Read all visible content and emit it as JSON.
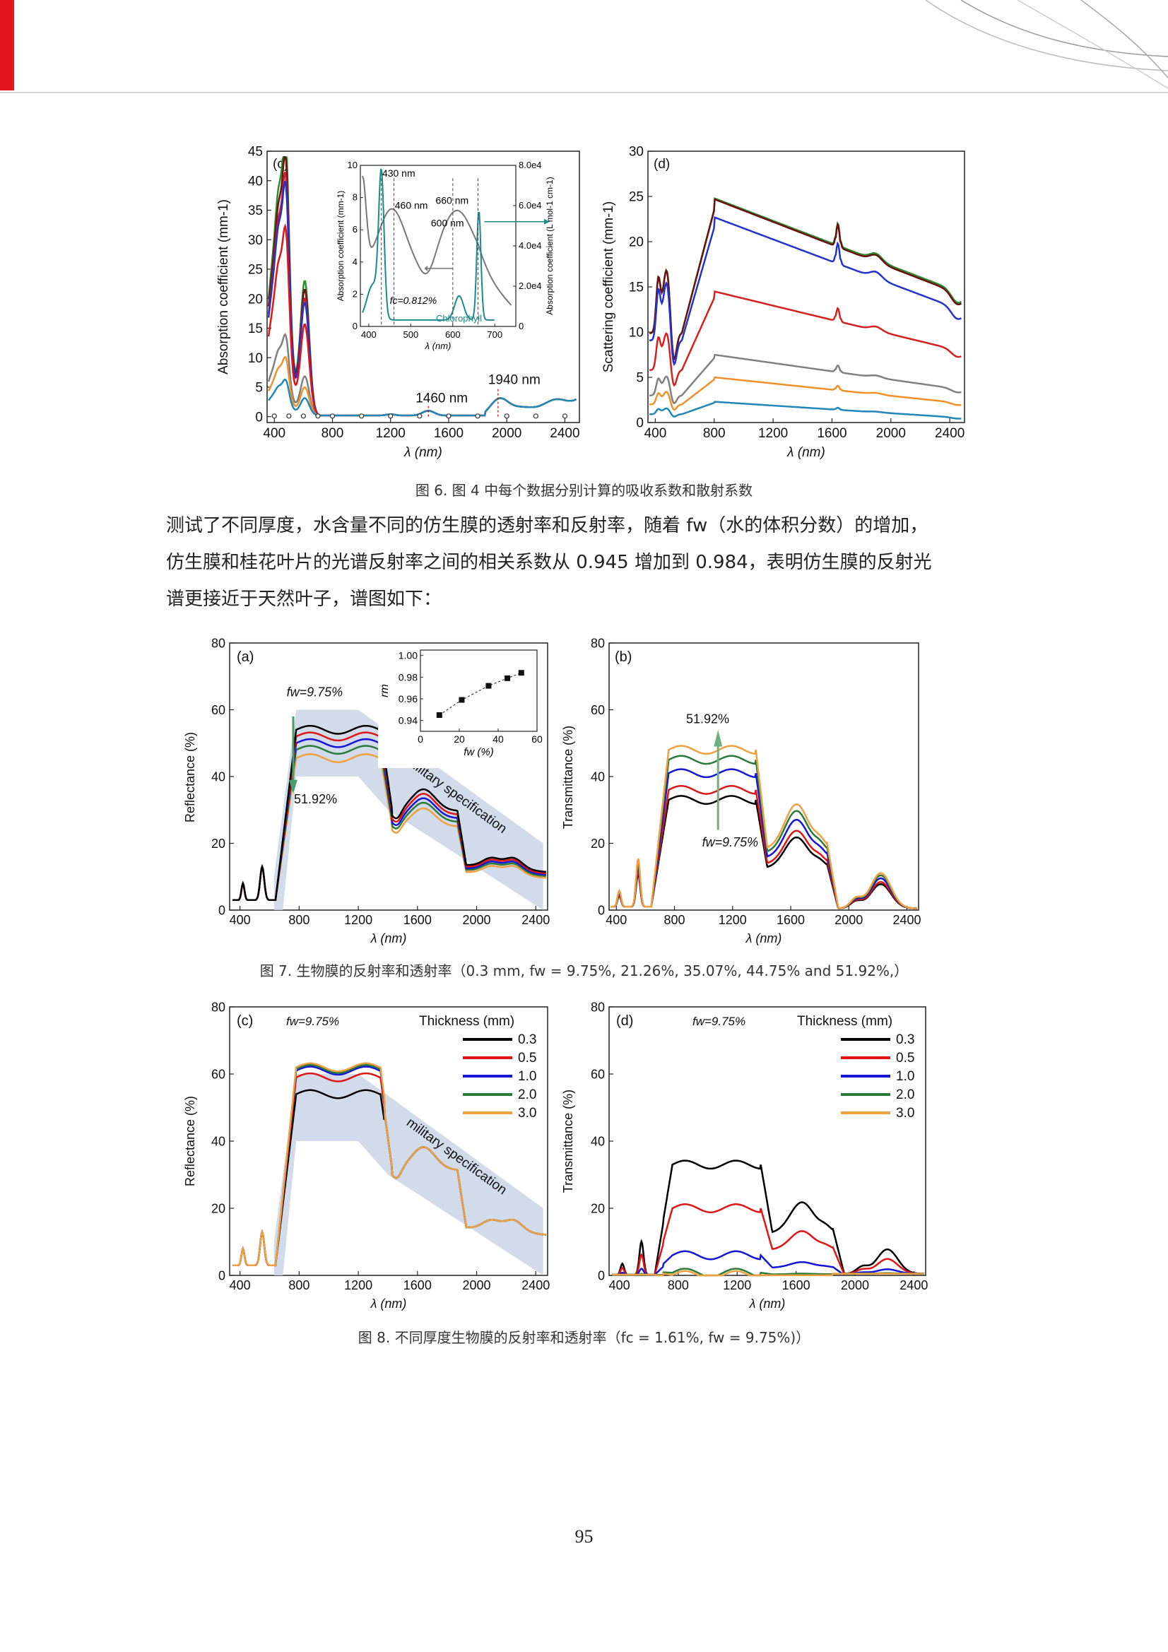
{
  "header": {
    "accent_color": "#e4161b"
  },
  "fig6": {
    "caption": "图 6. 图 4 中每个数据分别计算的吸收系数和散射系数",
    "c": {
      "label": "(c)",
      "ylabel": "Absorption coefficient (mm",
      "ylabel_sup": "-1",
      "ylabel_end": ")",
      "xlabel": "λ (nm)",
      "xticks": [
        "400",
        "800",
        "1200",
        "1600",
        "2000",
        "2400"
      ],
      "yticks": [
        "0",
        "5",
        "10",
        "15",
        "20",
        "25",
        "30",
        "35",
        "40",
        "45"
      ],
      "ann_1460": "1460 nm",
      "ann_1940": "1940 nm",
      "inset": {
        "ann_430": "430 nm",
        "ann_460": "460 nm",
        "ann_600": "600 nm",
        "ann_660": "660 nm",
        "fc": "fc=0.812%",
        "chlorophyll": "Chlorophyll",
        "xlabel": "λ (nm)",
        "xticks": [
          "400",
          "500",
          "600",
          "700"
        ],
        "yticks_left": [
          "0",
          "2",
          "4",
          "6",
          "8",
          "10"
        ],
        "yticks_right": [
          "0",
          "2.0e4",
          "4.0e4",
          "6.0e4",
          "8.0e4"
        ],
        "ylabel_left": "Absorption coefficient (mm-1)",
        "ylabel_right": "Absorption coefficient (L mol-1 cm-1)"
      }
    },
    "d": {
      "label": "(d)",
      "ylabel": "Scattering coefficient (mm",
      "ylabel_sup": "-1",
      "ylabel_end": ")",
      "xlabel": "λ (nm)",
      "xticks": [
        "400",
        "800",
        "1200",
        "1600",
        "2000",
        "2400"
      ],
      "yticks": [
        "0",
        "5",
        "10",
        "15",
        "20",
        "25",
        "30"
      ]
    }
  },
  "paragraph": {
    "line1": "测试了不同厚度，水含量不同的仿生膜的透射率和反射率，随着 fw（水的体积分数）的增加，",
    "line2": "仿生膜和桂花叶片的光谱反射率之间的相关系数从 0.945 增加到 0.984，表明仿生膜的反射光",
    "line3": "谱更接近于天然叶子，谱图如下："
  },
  "fig7": {
    "caption": "图 7.  生物膜的反射率和透射率（0.3 mm, fw = 9.75%, 21.26%, 35.07%, 44.75% and 51.92%,）",
    "a": {
      "label": "(a)",
      "ylabel": "Reflectance (%)",
      "xlabel": "λ (nm)",
      "xticks": [
        "400",
        "800",
        "1200",
        "1600",
        "2000",
        "2400"
      ],
      "yticks": [
        "0",
        "20",
        "40",
        "60",
        "80"
      ],
      "fw_top": "fw=9.75%",
      "fw_bottom": "51.92%",
      "mil": "military specification",
      "inset": {
        "ylabel": "rm",
        "xlabel": "fw  (%)",
        "xticks": [
          "0",
          "20",
          "40",
          "60"
        ],
        "yticks": [
          "0.94",
          "0.96",
          "0.98",
          "1.00"
        ],
        "points_x": [
          9.75,
          21.26,
          35.07,
          44.75,
          51.92
        ],
        "points_y": [
          0.945,
          0.959,
          0.972,
          0.979,
          0.984
        ]
      }
    },
    "b": {
      "label": "(b)",
      "ylabel": "Transmittance (%)",
      "xlabel": "λ (nm)",
      "xticks": [
        "400",
        "800",
        "1200",
        "1600",
        "2000",
        "2400"
      ],
      "yticks": [
        "0",
        "20",
        "40",
        "60",
        "80"
      ],
      "fw_top": "51.92%",
      "fw_bottom": "fw=9.75%"
    }
  },
  "fig8": {
    "caption": "图 8.  不同厚度生物膜的反射率和透射率（fc = 1.61%, fw = 9.75%)）",
    "c": {
      "label": "(c)",
      "ylabel": "Reflectance (%)",
      "xlabel": "λ (nm)",
      "xticks": [
        "400",
        "800",
        "1200",
        "1600",
        "2000",
        "2400"
      ],
      "yticks": [
        "0",
        "20",
        "40",
        "60",
        "80"
      ],
      "fw": "fw=9.75%",
      "legend_title": "Thickness (mm)",
      "mil": "military specification"
    },
    "d": {
      "label": "(d)",
      "ylabel": "Transmittance (%)",
      "xlabel": "λ (nm)",
      "xticks": [
        "400",
        "800",
        "1200",
        "1600",
        "2000",
        "2400"
      ],
      "yticks": [
        "0",
        "20",
        "40",
        "60",
        "80"
      ],
      "fw": "fw=9.75%",
      "legend_title": "Thickness (mm)"
    },
    "legend": [
      "0.3",
      "0.5",
      "1.0",
      "2.0",
      "3.0"
    ],
    "legend_colors": [
      "#000000",
      "#e01515",
      "#1515d8",
      "#2a7a3a",
      "#f0a040"
    ]
  },
  "page_number": "95",
  "chart_data": [
    {
      "type": "line",
      "title": "(c)",
      "xlabel": "λ (nm)",
      "ylabel": "Absorption coefficient (mm-1)",
      "xlim": [
        350,
        2500
      ],
      "ylim": [
        0,
        45
      ],
      "series_colors": [
        "#2e8b2e",
        "#6b1010",
        "#c71f2e",
        "#2233cc",
        "#e01515",
        "#808080",
        "#f0902a",
        "#1f88b8"
      ],
      "peak_scales": [
        31,
        29,
        27,
        26,
        21,
        9,
        6.5,
        4
      ],
      "annotations": [
        "1460 nm",
        "1940 nm"
      ]
    },
    {
      "type": "line",
      "title": "(d)",
      "xlabel": "λ (nm)",
      "ylabel": "Scattering coefficient (mm-1)",
      "xlim": [
        350,
        2500
      ],
      "ylim": [
        0,
        30
      ],
      "series_colors": [
        "#2e8b2e",
        "#6b1010",
        "#2233cc",
        "#d61f1f",
        "#808080",
        "#f0902a",
        "#1f88b8"
      ],
      "plateau_values": [
        24.8,
        24.7,
        22.7,
        14.5,
        7.5,
        5,
        2.3
      ],
      "end_values": [
        14.2,
        14.0,
        12.3,
        7.8,
        3.6,
        2.1,
        0.5
      ]
    },
    {
      "type": "line",
      "title": "(a)",
      "xlabel": "λ (nm)",
      "ylabel": "Reflectance (%)",
      "xlim": [
        350,
        2500
      ],
      "ylim": [
        0,
        80
      ],
      "series": [
        {
          "name": "fw=9.75%",
          "color": "#000000",
          "plateau": 54
        },
        {
          "name": "21.26%",
          "color": "#e01515",
          "plateau": 52
        },
        {
          "name": "35.07%",
          "color": "#1515d8",
          "plateau": 50
        },
        {
          "name": "44.75%",
          "color": "#2a7a3a",
          "plateau": 48
        },
        {
          "name": "51.92%",
          "color": "#f0a040",
          "plateau": 45.5
        }
      ]
    },
    {
      "type": "scatter",
      "title": "inset rm vs fw",
      "x": [
        9.75,
        21.26,
        35.07,
        44.75,
        51.92
      ],
      "y": [
        0.945,
        0.959,
        0.972,
        0.979,
        0.984
      ],
      "xlim": [
        0,
        60
      ],
      "ylim": [
        0.93,
        1.0
      ]
    },
    {
      "type": "line",
      "title": "(b)",
      "xlabel": "λ (nm)",
      "ylabel": "Transmittance (%)",
      "xlim": [
        350,
        2500
      ],
      "ylim": [
        0,
        80
      ],
      "series": [
        {
          "name": "fw=9.75%",
          "color": "#000000",
          "plateau": 33
        },
        {
          "name": "21.26%",
          "color": "#e01515",
          "plateau": 36
        },
        {
          "name": "35.07%",
          "color": "#1515d8",
          "plateau": 41
        },
        {
          "name": "44.75%",
          "color": "#2a7a3a",
          "plateau": 45
        },
        {
          "name": "51.92%",
          "color": "#f0a040",
          "plateau": 48
        }
      ]
    },
    {
      "type": "line",
      "title": "(c) thickness",
      "xlabel": "λ (nm)",
      "ylabel": "Reflectance (%)",
      "xlim": [
        350,
        2500
      ],
      "ylim": [
        0,
        80
      ],
      "series": [
        {
          "name": "0.3",
          "color": "#000000",
          "plateau": 54
        },
        {
          "name": "0.5",
          "color": "#e01515",
          "plateau": 59
        },
        {
          "name": "1.0",
          "color": "#1515d8",
          "plateau": 61
        },
        {
          "name": "2.0",
          "color": "#2a7a3a",
          "plateau": 61.5
        },
        {
          "name": "3.0",
          "color": "#f0a040",
          "plateau": 62
        }
      ]
    },
    {
      "type": "line",
      "title": "(d) thickness",
      "xlabel": "λ (nm)",
      "ylabel": "Transmittance (%)",
      "xlim": [
        350,
        2500
      ],
      "ylim": [
        0,
        80
      ],
      "series": [
        {
          "name": "0.3",
          "color": "#000000",
          "plateau": 33
        },
        {
          "name": "0.5",
          "color": "#e01515",
          "plateau": 20
        },
        {
          "name": "1.0",
          "color": "#1515d8",
          "plateau": 6
        },
        {
          "name": "2.0",
          "color": "#2a7a3a",
          "plateau": 0.8
        },
        {
          "name": "3.0",
          "color": "#f0a040",
          "plateau": 0.1
        }
      ]
    }
  ]
}
